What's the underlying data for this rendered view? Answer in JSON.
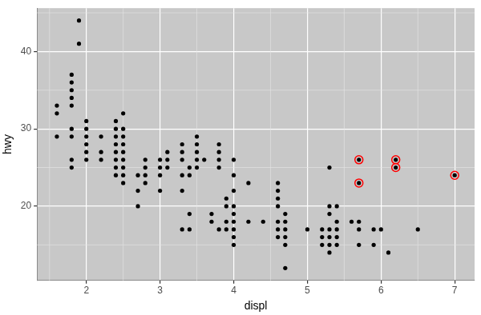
{
  "chart_data": {
    "type": "scatter",
    "xlabel": "displ",
    "ylabel": "hwy",
    "xlim": [
      1.33,
      7.27
    ],
    "ylim": [
      10.4,
      45.6
    ],
    "xticks": [
      2,
      3,
      4,
      5,
      6,
      7
    ],
    "yticks": [
      20,
      30,
      40
    ],
    "grid": true,
    "series": [
      {
        "color": "#000000",
        "marker": "circle",
        "x": [
          1.6,
          1.6,
          1.6,
          1.8,
          1.8,
          1.8,
          1.8,
          1.8,
          1.8,
          1.8,
          1.8,
          1.8,
          1.9,
          1.9,
          2.0,
          2.0,
          2.0,
          2.0,
          2.0,
          2.0,
          2.2,
          2.2,
          2.2,
          2.4,
          2.4,
          2.4,
          2.4,
          2.4,
          2.4,
          2.4,
          2.4,
          2.5,
          2.5,
          2.5,
          2.5,
          2.5,
          2.5,
          2.5,
          2.5,
          2.5,
          2.7,
          2.7,
          2.7,
          2.8,
          2.8,
          2.8,
          2.8,
          3.0,
          3.0,
          3.0,
          3.0,
          3.1,
          3.1,
          3.1,
          3.3,
          3.3,
          3.3,
          3.3,
          3.3,
          3.3,
          3.4,
          3.4,
          3.4,
          3.4,
          3.5,
          3.5,
          3.5,
          3.5,
          3.5,
          3.6,
          3.7,
          3.7,
          3.8,
          3.8,
          3.8,
          3.8,
          3.8,
          3.9,
          3.9,
          3.9,
          3.9,
          4.0,
          4.0,
          4.0,
          4.0,
          4.0,
          4.0,
          4.0,
          4.0,
          4.0,
          4.2,
          4.2,
          4.4,
          4.6,
          4.6,
          4.6,
          4.6,
          4.6,
          4.6,
          4.6,
          4.7,
          4.7,
          4.7,
          4.7,
          4.7,
          4.7,
          5.0,
          5.2,
          5.2,
          5.2,
          5.3,
          5.3,
          5.3,
          5.3,
          5.3,
          5.3,
          5.3,
          5.4,
          5.4,
          5.4,
          5.4,
          5.4,
          5.6,
          5.7,
          5.7,
          5.7,
          5.7,
          5.7,
          5.9,
          5.9,
          6.0,
          6.1,
          6.2,
          6.2,
          6.5,
          7.0
        ],
        "y": [
          29,
          32,
          33,
          25,
          26,
          29,
          30,
          33,
          34,
          35,
          36,
          37,
          44,
          41,
          26,
          27,
          28,
          29,
          30,
          31,
          26,
          27,
          29,
          24,
          25,
          26,
          27,
          28,
          29,
          30,
          31,
          23,
          24,
          25,
          26,
          27,
          28,
          29,
          30,
          32,
          20,
          22,
          24,
          23,
          24,
          25,
          26,
          22,
          24,
          25,
          26,
          25,
          26,
          27,
          17,
          22,
          24,
          26,
          27,
          28,
          17,
          19,
          24,
          25,
          25,
          26,
          27,
          28,
          29,
          26,
          18,
          19,
          17,
          25,
          26,
          27,
          28,
          17,
          18,
          20,
          21,
          15,
          16,
          17,
          18,
          19,
          20,
          22,
          24,
          26,
          23,
          18,
          18,
          16,
          17,
          18,
          20,
          21,
          22,
          23,
          12,
          15,
          16,
          17,
          18,
          19,
          17,
          15,
          16,
          17,
          14,
          15,
          16,
          17,
          19,
          20,
          25,
          15,
          16,
          17,
          18,
          20,
          18,
          15,
          17,
          18,
          23,
          26,
          15,
          17,
          17,
          14,
          25,
          26,
          17,
          24
        ]
      },
      {
        "color": "#ff0000",
        "marker": "ring",
        "x": [
          5.7,
          5.7,
          6.2,
          6.2,
          7.0
        ],
        "y": [
          26,
          23,
          26,
          25,
          24
        ]
      }
    ]
  }
}
